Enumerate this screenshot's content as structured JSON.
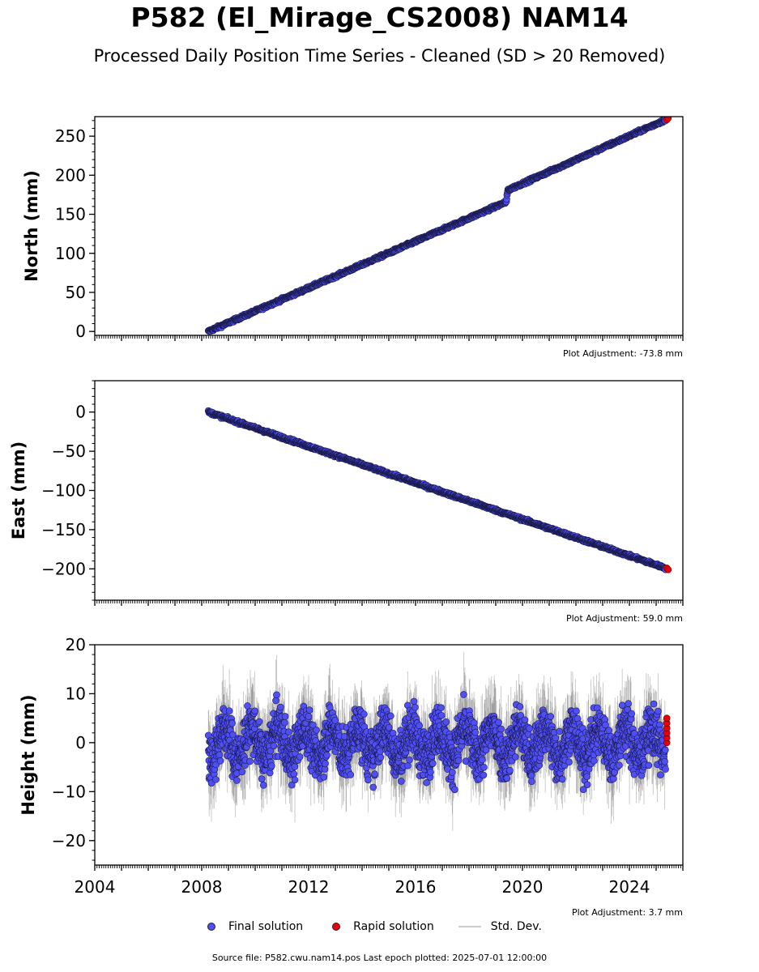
{
  "title": "P582 (El_Mirage_CS2008) NAM14",
  "subtitle": "Processed Daily Position Time Series - Cleaned (SD > 20 Removed)",
  "legend": {
    "final": "Final solution",
    "rapid": "Rapid solution",
    "std": "Std. Dev."
  },
  "footer": "Source file: P582.cwu.nam14.pos  Last epoch plotted: 2025-07-01 12:00:00",
  "colors": {
    "final": "#4f4ff5",
    "final_edge": "#1a1a4a",
    "rapid": "#e8000b",
    "std": "#b0b0b0"
  },
  "chart_data": [
    {
      "type": "scatter",
      "name": "north",
      "ylabel": "North (mm)",
      "adjustment": "Plot Adjustment: -73.8 mm",
      "xlim": [
        2004,
        2026
      ],
      "ylim": [
        -5,
        275
      ],
      "yticks": [
        0,
        50,
        100,
        150,
        200,
        250
      ],
      "ytick_labels": [
        "0",
        "50",
        "100",
        "150",
        "200",
        "250"
      ],
      "x_tick_labels_shown": false,
      "data_start": 2008.25,
      "data_end": 2025.5,
      "final_trend": [
        [
          2008.25,
          0
        ],
        [
          2019.4,
          166
        ],
        [
          2019.45,
          181
        ],
        [
          2025.35,
          271
        ]
      ],
      "rapid_points": [
        [
          2025.4,
          271
        ],
        [
          2025.45,
          273
        ]
      ]
    },
    {
      "type": "scatter",
      "name": "east",
      "ylabel": "East (mm)",
      "adjustment": "Plot Adjustment: 59.0 mm",
      "xlim": [
        2004,
        2026
      ],
      "ylim": [
        -240,
        40
      ],
      "yticks": [
        -200,
        -150,
        -100,
        -50,
        0
      ],
      "ytick_labels": [
        "−200",
        "−150",
        "−100",
        "−50",
        "0"
      ],
      "x_tick_labels_shown": false,
      "data_start": 2008.25,
      "data_end": 2025.5,
      "final_trend": [
        [
          2008.25,
          0
        ],
        [
          2025.35,
          -199
        ]
      ],
      "rapid_points": [
        [
          2025.4,
          -199
        ],
        [
          2025.45,
          -201
        ]
      ]
    },
    {
      "type": "scatter",
      "name": "height",
      "ylabel": "Height (mm)",
      "adjustment": "Plot Adjustment: 3.7 mm",
      "xlim": [
        2004,
        2026
      ],
      "ylim": [
        -25,
        20
      ],
      "yticks": [
        -20,
        -10,
        0,
        10,
        20
      ],
      "ytick_labels": [
        "−20",
        "−10",
        "0",
        "10",
        "20"
      ],
      "x_tick_labels_shown": true,
      "xticks": [
        2004,
        2008,
        2012,
        2016,
        2020,
        2024
      ],
      "xtick_labels": [
        "2004",
        "2008",
        "2012",
        "2016",
        "2020",
        "2024"
      ],
      "data_start": 2008.25,
      "data_end": 2025.5,
      "final_trend": [
        [
          2008.25,
          0
        ],
        [
          2025.35,
          0
        ]
      ],
      "scatter_range": [
        -22,
        19
      ],
      "rapid_points": [
        [
          2025.4,
          0
        ],
        [
          2025.4,
          1
        ],
        [
          2025.4,
          2
        ],
        [
          2025.4,
          3
        ],
        [
          2025.4,
          4
        ],
        [
          2025.4,
          5
        ]
      ]
    }
  ]
}
